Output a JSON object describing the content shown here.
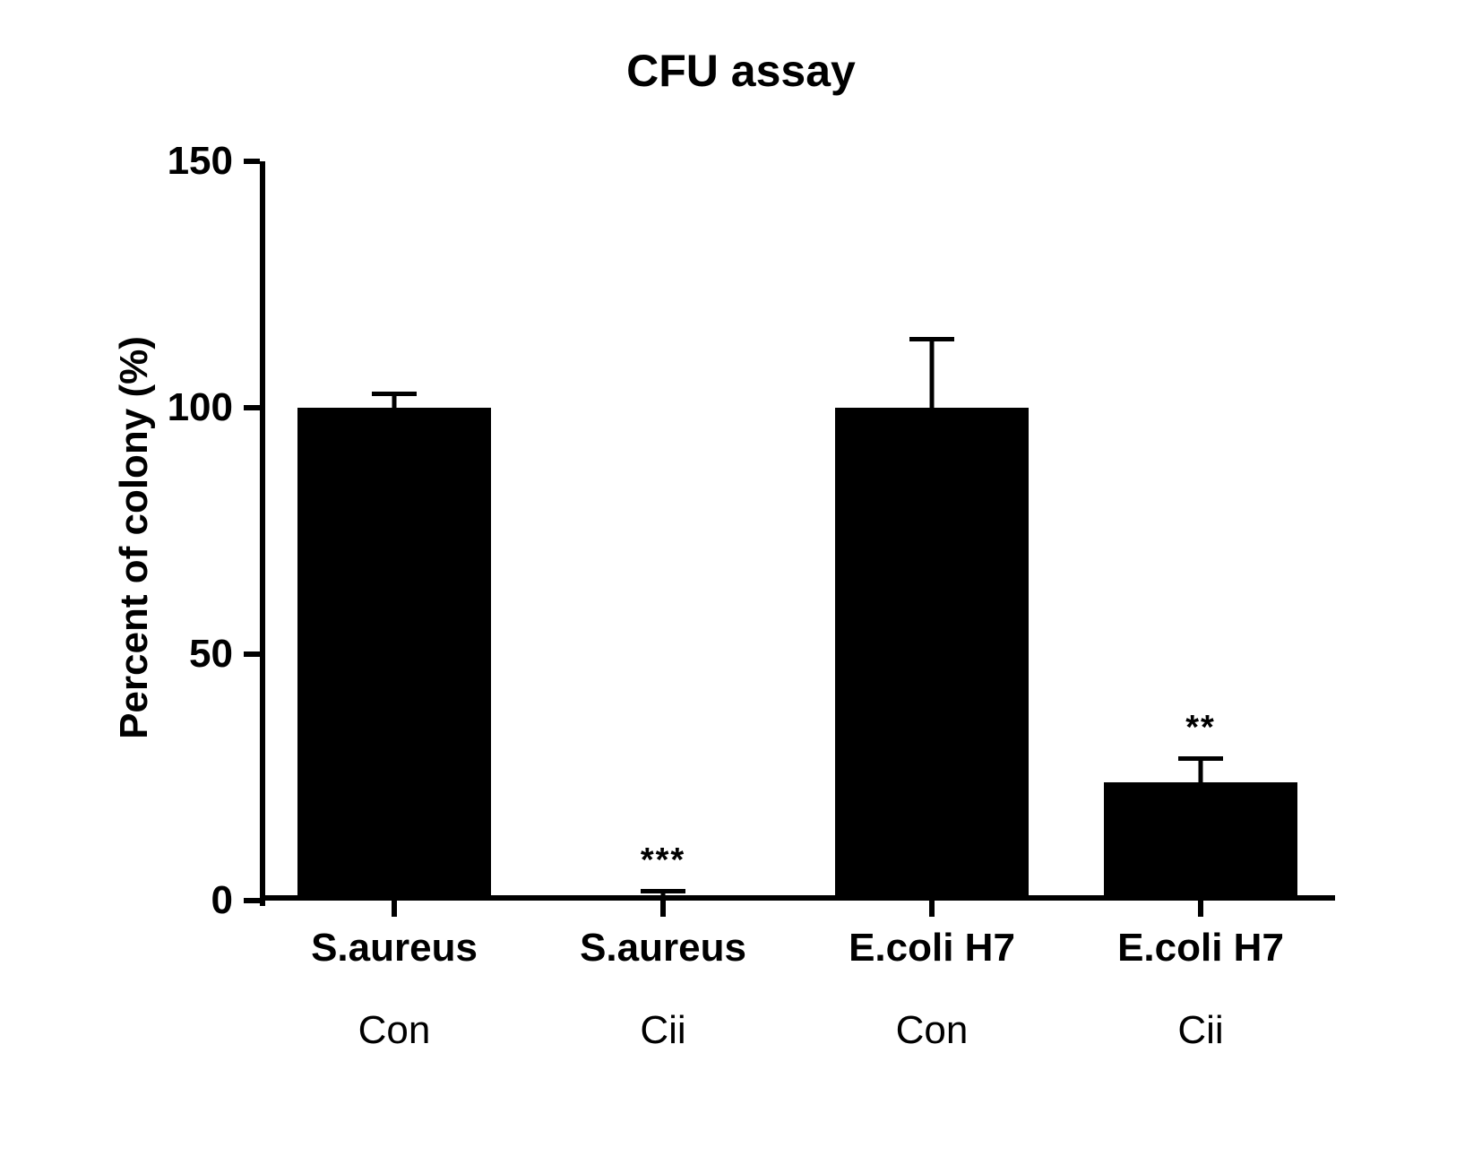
{
  "chart": {
    "type": "bar",
    "title": "CFU assay",
    "title_fontsize": 50,
    "background_color": "#ffffff",
    "y_axis": {
      "label": "Percent of  colony (%)",
      "label_fontsize": 44,
      "min": 0,
      "max": 150,
      "ticks": [
        0,
        50,
        100,
        150
      ],
      "tick_fontsize": 44
    },
    "x_axis": {
      "categories_line1": [
        "S.aureus",
        "S.aureus",
        "E.coli H7",
        "E.coli H7"
      ],
      "categories_line2": [
        "Con",
        "Cii",
        "Con",
        "Cii"
      ],
      "label_fontsize_line1": 44,
      "label_fontsize_line2": 44
    },
    "bars": [
      {
        "value": 100,
        "error": 3,
        "color": "#000000",
        "significance": ""
      },
      {
        "value": 1,
        "error": 1,
        "color": "#000000",
        "significance": "***"
      },
      {
        "value": 100,
        "error": 14,
        "color": "#000000",
        "significance": ""
      },
      {
        "value": 24,
        "error": 5,
        "color": "#000000",
        "significance": "**"
      }
    ],
    "bar_width_ratio": 0.72,
    "error_cap_width": 50,
    "axis_line_color": "#000000",
    "axis_line_width": 6,
    "sig_fontsize": 38
  }
}
